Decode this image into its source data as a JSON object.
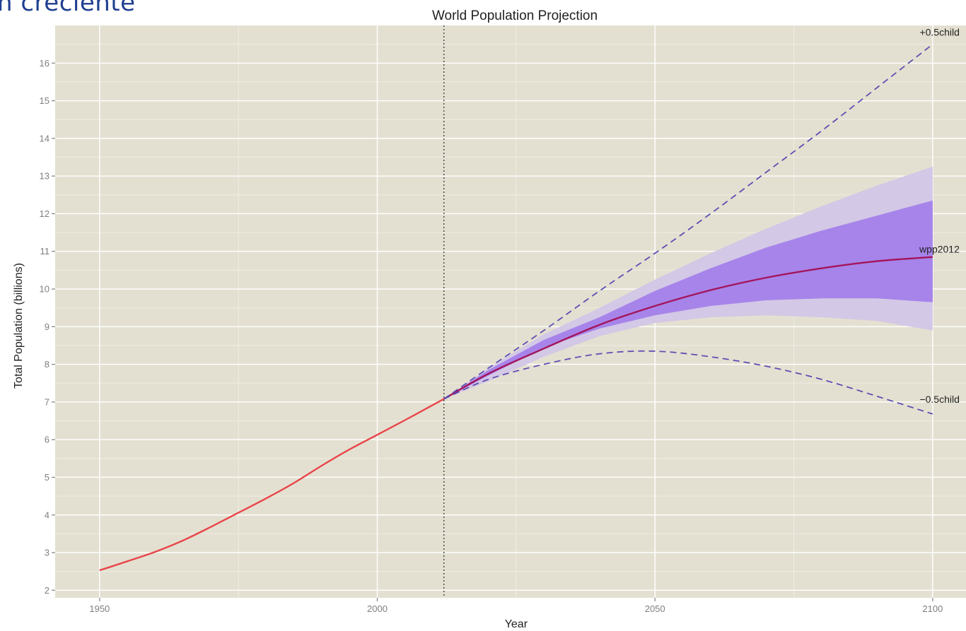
{
  "slide": {
    "heading": "n creciente"
  },
  "colors": {
    "panel_bg": "#e4e0d1",
    "grid_major": "#ffffff",
    "grid_minor": "#efece3",
    "historic_line": "#e8454a",
    "median_line": "#a3155b",
    "band_80": "#a784ea",
    "band_95": "#d3c8e6",
    "dashed_line": "#5e4fb2",
    "heading": "#1f3f8f"
  },
  "chart_data": {
    "type": "line",
    "title": "World Population Projection",
    "xlabel": "Year",
    "ylabel": "Total Population (billions)",
    "xlim": [
      1942,
      2106
    ],
    "ylim": [
      1.8,
      17.0
    ],
    "xticks": [
      1950,
      2000,
      2050,
      2100
    ],
    "yticks": [
      2,
      3,
      4,
      5,
      6,
      7,
      8,
      9,
      10,
      11,
      12,
      13,
      14,
      15,
      16
    ],
    "projection_start_year": 2012,
    "grid": true,
    "series": [
      {
        "style": "historic",
        "x": [
          1950,
          1955,
          1960,
          1965,
          1970,
          1975,
          1980,
          1985,
          1990,
          1995,
          2000,
          2005,
          2010,
          2012
        ],
        "y": [
          2.53,
          2.77,
          3.02,
          3.32,
          3.68,
          4.06,
          4.44,
          4.85,
          5.31,
          5.74,
          6.13,
          6.52,
          6.92,
          7.08
        ]
      },
      {
        "name": "wpp2012",
        "style": "median",
        "x": [
          2012,
          2020,
          2030,
          2040,
          2050,
          2060,
          2070,
          2080,
          2090,
          2100
        ],
        "y": [
          7.08,
          7.75,
          8.42,
          9.05,
          9.55,
          9.97,
          10.3,
          10.55,
          10.74,
          10.85
        ]
      },
      {
        "name": "+0.5child",
        "style": "dashed",
        "x": [
          2012,
          2020,
          2030,
          2040,
          2050,
          2060,
          2070,
          2080,
          2090,
          2100
        ],
        "y": [
          7.08,
          7.9,
          8.9,
          9.95,
          10.95,
          12.0,
          13.1,
          14.2,
          15.35,
          16.5
        ]
      },
      {
        "name": "−0.5child",
        "style": "dashed",
        "x": [
          2012,
          2020,
          2030,
          2040,
          2050,
          2060,
          2070,
          2080,
          2090,
          2100
        ],
        "y": [
          7.08,
          7.6,
          8.0,
          8.28,
          8.35,
          8.2,
          7.95,
          7.6,
          7.15,
          6.68
        ]
      }
    ],
    "bands": [
      {
        "level": "95",
        "x": [
          2012,
          2020,
          2030,
          2040,
          2050,
          2060,
          2070,
          2080,
          2090,
          2100
        ],
        "lower": [
          7.08,
          7.55,
          8.2,
          8.75,
          9.1,
          9.25,
          9.3,
          9.25,
          9.15,
          8.9
        ],
        "upper": [
          7.08,
          7.9,
          8.8,
          9.5,
          10.25,
          10.95,
          11.6,
          12.2,
          12.75,
          13.25
        ]
      },
      {
        "level": "80",
        "x": [
          2012,
          2020,
          2030,
          2040,
          2050,
          2060,
          2070,
          2080,
          2090,
          2100
        ],
        "lower": [
          7.08,
          7.7,
          8.45,
          8.95,
          9.3,
          9.55,
          9.7,
          9.75,
          9.75,
          9.65
        ],
        "upper": [
          7.08,
          7.85,
          8.65,
          9.25,
          9.95,
          10.55,
          11.1,
          11.55,
          11.95,
          12.35
        ]
      }
    ]
  }
}
